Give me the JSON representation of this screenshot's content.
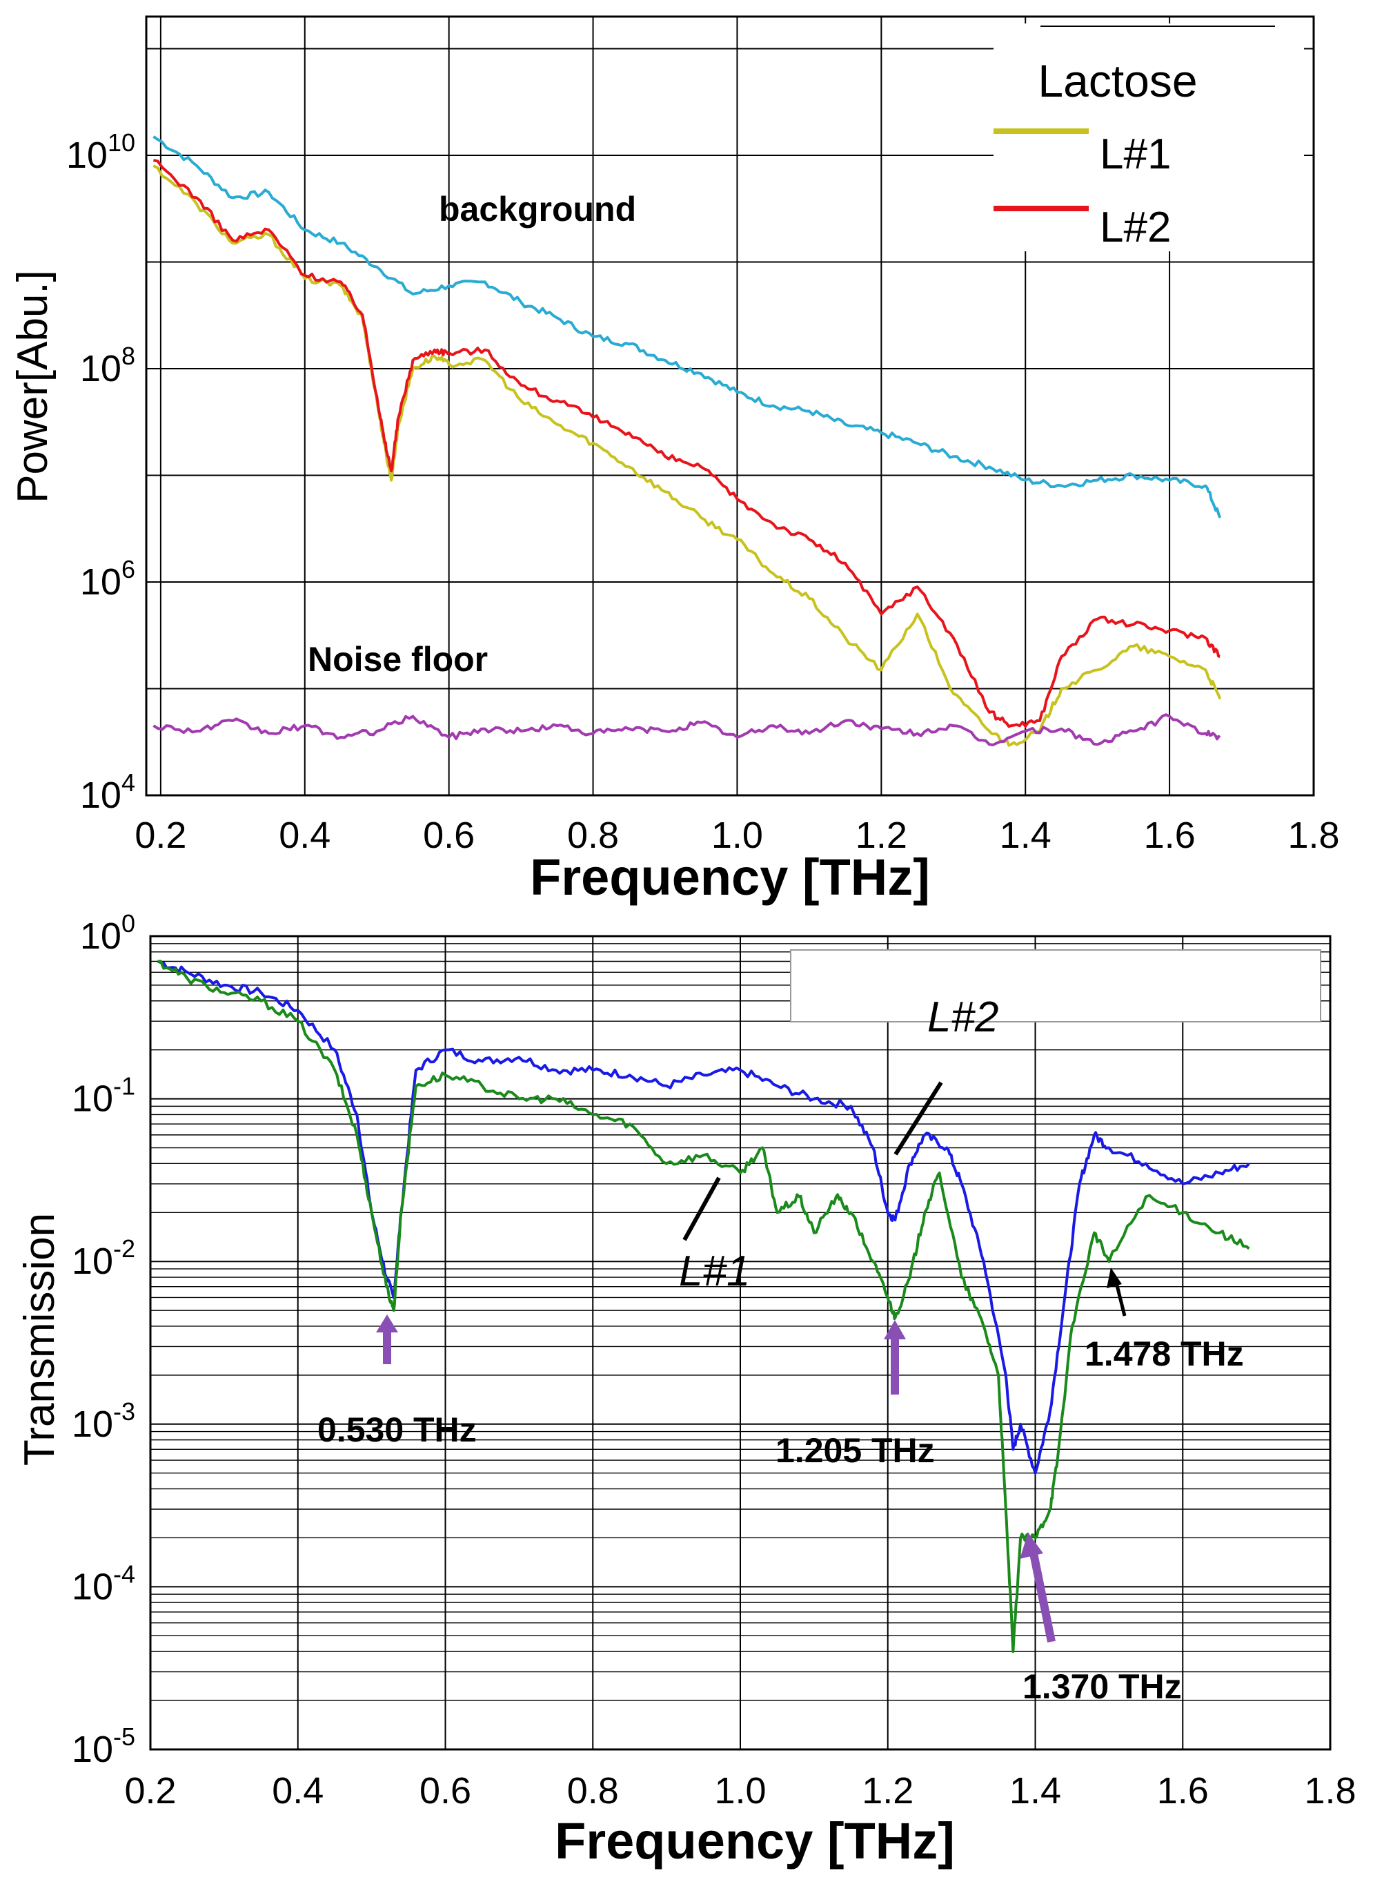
{
  "chart_data": [
    {
      "id": "power",
      "type": "line",
      "title": "",
      "xlabel": "Frequency [THz]",
      "ylabel": "Power[Abu.]",
      "xlim": [
        0.18,
        1.8
      ],
      "ylim": [
        10000,
        200000000000
      ],
      "yscale": "log",
      "grid": true,
      "x_ticks": [
        "0.2",
        "0.4",
        "0.6",
        "0.8",
        "1.0",
        "1.2",
        "1.4",
        "1.6",
        "1.8"
      ],
      "x_tick_values": [
        0.2,
        0.4,
        0.6,
        0.8,
        1.0,
        1.2,
        1.4,
        1.6,
        1.8
      ],
      "y_ticks": [
        {
          "value": 10000,
          "base": "10",
          "exp": "4"
        },
        {
          "value": 1000000,
          "base": "10",
          "exp": "6"
        },
        {
          "value": 100000000,
          "base": "10",
          "exp": "8"
        },
        {
          "value": 10000000000,
          "base": "10",
          "exp": "10"
        }
      ],
      "legend": {
        "title": "Lactose",
        "position": "top-right",
        "entries": [
          "L#1",
          "L#2"
        ]
      },
      "annotations": [
        "background",
        "Noise floor"
      ],
      "series": [
        {
          "name": "background",
          "color": "#29abd3",
          "x": [
            0.19,
            0.25,
            0.3,
            0.35,
            0.4,
            0.45,
            0.5,
            0.55,
            0.6,
            0.65,
            0.7,
            0.75,
            0.8,
            0.85,
            0.9,
            0.95,
            1.0,
            1.05,
            1.1,
            1.15,
            1.2,
            1.25,
            1.3,
            1.35,
            1.4,
            1.45,
            1.5,
            1.55,
            1.6,
            1.65,
            1.67
          ],
          "y": [
            15000000000,
            8000000000,
            4000000000,
            4500000000,
            2000000000,
            1500000000,
            900000000,
            500000000,
            600000000,
            650000000,
            420000000,
            300000000,
            200000000,
            170000000,
            120000000,
            90000000,
            60000000,
            45000000,
            40000000,
            30000000,
            25000000,
            20000000,
            15000000,
            12000000,
            9000000,
            8000000,
            9000000,
            10000000,
            9000000,
            8000000,
            4000000
          ]
        },
        {
          "name": "L#1",
          "color": "#c8c21e",
          "x": [
            0.19,
            0.25,
            0.3,
            0.35,
            0.4,
            0.45,
            0.48,
            0.5,
            0.51,
            0.52,
            0.53,
            0.55,
            0.58,
            0.6,
            0.65,
            0.7,
            0.75,
            0.8,
            0.85,
            0.9,
            0.95,
            1.0,
            1.05,
            1.1,
            1.15,
            1.2,
            1.25,
            1.3,
            1.35,
            1.38,
            1.42,
            1.45,
            1.5,
            1.55,
            1.6,
            1.65,
            1.67
          ],
          "y": [
            8000000000,
            3500000000,
            1500000000,
            1800000000,
            700000000,
            600000000,
            300000000,
            50000000,
            20000000,
            9000000,
            30000000,
            100000000,
            130000000,
            110000000,
            120000000,
            50000000,
            30000000,
            20000000,
            12000000,
            7000000,
            4000000,
            2500000,
            1200000,
            700000,
            300000,
            150000,
            500000,
            90000,
            40000,
            30000,
            40000,
            100000,
            150000,
            250000,
            200000,
            150000,
            80000
          ]
        },
        {
          "name": "L#2",
          "color": "#e8141c",
          "x": [
            0.19,
            0.25,
            0.3,
            0.35,
            0.4,
            0.45,
            0.48,
            0.5,
            0.51,
            0.52,
            0.53,
            0.55,
            0.58,
            0.6,
            0.65,
            0.7,
            0.75,
            0.8,
            0.85,
            0.9,
            0.95,
            1.0,
            1.05,
            1.1,
            1.15,
            1.2,
            1.25,
            1.3,
            1.35,
            1.38,
            1.42,
            1.45,
            1.5,
            1.55,
            1.6,
            1.65,
            1.67
          ],
          "y": [
            9000000000,
            4000000000,
            1600000000,
            2000000000,
            750000000,
            650000000,
            320000000,
            55000000,
            22000000,
            11000000,
            35000000,
            120000000,
            150000000,
            140000000,
            150000000,
            70000000,
            50000000,
            35000000,
            25000000,
            15000000,
            12000000,
            6000000,
            3500000,
            2500000,
            1500000,
            500000,
            900000,
            300000,
            60000,
            45000,
            50000,
            200000,
            450000,
            400000,
            350000,
            300000,
            200000
          ]
        },
        {
          "name": "Noise floor",
          "color": "#a23bb0",
          "x": [
            0.19,
            0.25,
            0.3,
            0.35,
            0.4,
            0.45,
            0.5,
            0.55,
            0.6,
            0.65,
            0.7,
            0.75,
            0.8,
            0.85,
            0.9,
            0.95,
            1.0,
            1.05,
            1.1,
            1.15,
            1.2,
            1.25,
            1.3,
            1.35,
            1.4,
            1.45,
            1.5,
            1.55,
            1.6,
            1.65,
            1.67
          ],
          "y": [
            45000,
            40000,
            50000,
            38000,
            45000,
            35000,
            40000,
            55000,
            35000,
            42000,
            40000,
            45000,
            38000,
            42000,
            40000,
            48000,
            35000,
            45000,
            38000,
            50000,
            42000,
            38000,
            45000,
            30000,
            40000,
            42000,
            30000,
            40000,
            55000,
            38000,
            35000
          ]
        }
      ]
    },
    {
      "id": "transmission",
      "type": "line",
      "title": "",
      "xlabel": "Frequency [THz]",
      "ylabel": "Transmission",
      "xlim": [
        0.2,
        1.8
      ],
      "ylim": [
        1e-05,
        1
      ],
      "yscale": "log",
      "grid": true,
      "x_ticks": [
        "0.2",
        "0.4",
        "0.6",
        "0.8",
        "1.0",
        "1.2",
        "1.4",
        "1.6",
        "1.8"
      ],
      "x_tick_values": [
        0.2,
        0.4,
        0.6,
        0.8,
        1.0,
        1.2,
        1.4,
        1.6,
        1.8
      ],
      "y_ticks": [
        {
          "value": 1e-05,
          "base": "10",
          "exp": "-5"
        },
        {
          "value": 0.0001,
          "base": "10",
          "exp": "-4"
        },
        {
          "value": 0.001,
          "base": "10",
          "exp": "-3"
        },
        {
          "value": 0.01,
          "base": "10",
          "exp": "-2"
        },
        {
          "value": 0.1,
          "base": "10",
          "exp": "-1"
        },
        {
          "value": 1,
          "base": "10",
          "exp": "0"
        }
      ],
      "annotations": {
        "series_labels": [
          "L#1",
          "L#2"
        ],
        "peaks": [
          "0.530 THz",
          "1.205 THz",
          "1.370 THz",
          "1.478 THz"
        ]
      },
      "series": [
        {
          "name": "L#2",
          "color": "#1a1ae6",
          "x": [
            0.21,
            0.25,
            0.3,
            0.35,
            0.4,
            0.45,
            0.48,
            0.5,
            0.52,
            0.53,
            0.54,
            0.56,
            0.6,
            0.65,
            0.7,
            0.75,
            0.8,
            0.85,
            0.9,
            0.95,
            1.0,
            1.05,
            1.1,
            1.15,
            1.18,
            1.2,
            1.21,
            1.23,
            1.25,
            1.28,
            1.3,
            1.33,
            1.36,
            1.37,
            1.38,
            1.4,
            1.42,
            1.44,
            1.46,
            1.48,
            1.5,
            1.55,
            1.6,
            1.65,
            1.69
          ],
          "y": [
            0.7,
            0.6,
            0.5,
            0.45,
            0.35,
            0.2,
            0.08,
            0.02,
            0.008,
            0.006,
            0.02,
            0.15,
            0.2,
            0.17,
            0.18,
            0.15,
            0.15,
            0.14,
            0.12,
            0.14,
            0.15,
            0.12,
            0.1,
            0.09,
            0.05,
            0.02,
            0.018,
            0.04,
            0.06,
            0.05,
            0.03,
            0.01,
            0.002,
            0.0007,
            0.001,
            0.0005,
            0.0012,
            0.006,
            0.03,
            0.06,
            0.05,
            0.04,
            0.03,
            0.035,
            0.04
          ]
        },
        {
          "name": "L#1",
          "color": "#1a8a1a",
          "x": [
            0.21,
            0.25,
            0.3,
            0.35,
            0.4,
            0.45,
            0.48,
            0.5,
            0.52,
            0.53,
            0.54,
            0.56,
            0.6,
            0.65,
            0.7,
            0.75,
            0.8,
            0.85,
            0.9,
            0.95,
            1.0,
            1.03,
            1.05,
            1.08,
            1.1,
            1.13,
            1.15,
            1.18,
            1.2,
            1.21,
            1.23,
            1.25,
            1.27,
            1.3,
            1.33,
            1.35,
            1.36,
            1.37,
            1.38,
            1.4,
            1.42,
            1.43,
            1.45,
            1.48,
            1.5,
            1.55,
            1.6,
            1.65,
            1.69
          ],
          "y": [
            0.7,
            0.55,
            0.45,
            0.4,
            0.3,
            0.15,
            0.06,
            0.02,
            0.007,
            0.005,
            0.02,
            0.12,
            0.14,
            0.12,
            0.1,
            0.1,
            0.08,
            0.07,
            0.04,
            0.045,
            0.035,
            0.05,
            0.02,
            0.025,
            0.015,
            0.025,
            0.02,
            0.01,
            0.006,
            0.0045,
            0.008,
            0.02,
            0.035,
            0.008,
            0.004,
            0.002,
            0.0003,
            4e-05,
            0.0002,
            0.0002,
            0.0003,
            0.0006,
            0.004,
            0.015,
            0.01,
            0.025,
            0.02,
            0.015,
            0.012
          ]
        }
      ]
    }
  ]
}
